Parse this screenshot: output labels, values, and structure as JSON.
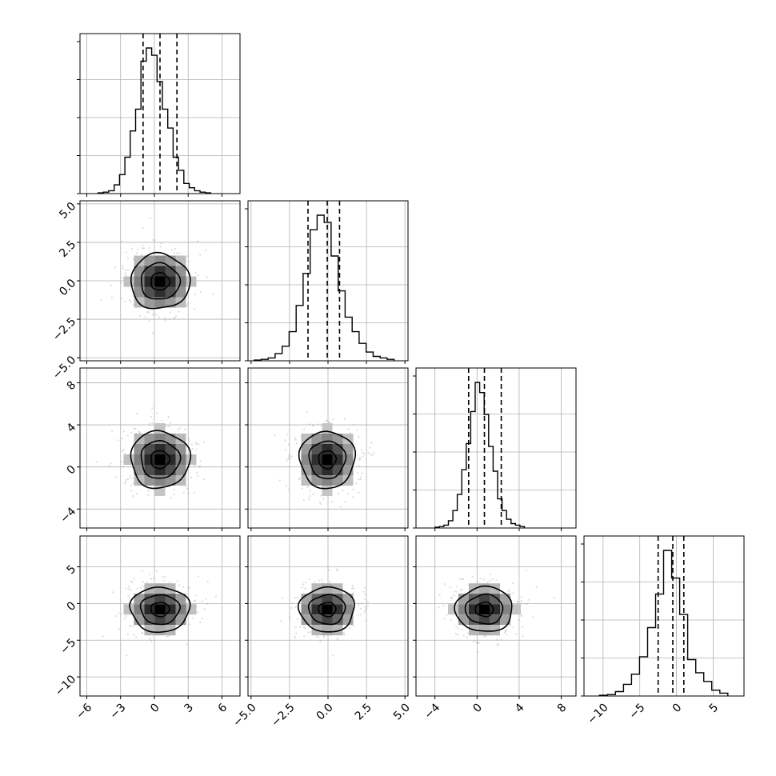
{
  "chart_data": {
    "type": "corner",
    "n_params": 4,
    "quantile_lines": "dashed",
    "grid": true,
    "params": [
      {
        "hist": [
          0.5,
          1,
          2,
          6,
          13,
          25,
          43,
          58,
          91,
          100,
          95,
          77,
          58,
          45,
          25,
          16,
          7,
          4,
          2,
          1,
          0.5
        ],
        "hist_range": [
          -5.0,
          5.0
        ],
        "quantiles": [
          -1.0,
          0.5,
          2.0
        ],
        "axis_range": [
          -6.6,
          7.6
        ],
        "ticks": [
          -6,
          -3,
          0,
          3,
          6
        ],
        "tick_labels": [
          "−6",
          "−3",
          "0",
          "3",
          "6"
        ],
        "center": 0.5
      },
      {
        "hist": [
          0.5,
          1,
          2,
          5,
          10,
          20,
          38,
          60,
          90,
          100,
          95,
          72,
          48,
          30,
          20,
          12,
          6,
          3,
          2,
          1
        ],
        "hist_range": [
          -4.8,
          4.3
        ],
        "quantiles": [
          -1.3,
          -0.05,
          0.75
        ],
        "axis_range": [
          -5.2,
          5.2
        ],
        "ticks": [
          -5.0,
          -2.5,
          0.0,
          2.5,
          5.0
        ],
        "tick_labels": [
          "−5.0",
          "−2.5",
          "0.0",
          "2.5",
          "5.0"
        ],
        "center": -0.05
      },
      {
        "hist": [
          0.5,
          1,
          2,
          5,
          12,
          23,
          40,
          58,
          80,
          100,
          93,
          78,
          56,
          39,
          20,
          12,
          6,
          3,
          2,
          1
        ],
        "hist_range": [
          -4.0,
          4.5
        ],
        "quantiles": [
          -0.8,
          0.7,
          2.3
        ],
        "axis_range": [
          -5.8,
          9.4
        ],
        "ticks": [
          -4,
          0,
          4,
          8
        ],
        "tick_labels": [
          "−4",
          "0",
          "4",
          "8"
        ],
        "center": 0.7
      },
      {
        "hist": [
          0.5,
          1,
          3,
          8,
          15,
          27,
          47,
          70,
          100,
          81,
          56,
          25,
          16,
          10,
          4,
          2
        ],
        "hist_range": [
          -10.5,
          7.0
        ],
        "quantiles": [
          -2.5,
          -0.5,
          1.0
        ],
        "axis_range": [
          -12.6,
          9.2
        ],
        "ticks": [
          -10,
          -5,
          0,
          5
        ],
        "tick_labels": [
          "−10",
          "−5",
          "0",
          "5"
        ],
        "center": -0.8
      }
    ]
  }
}
